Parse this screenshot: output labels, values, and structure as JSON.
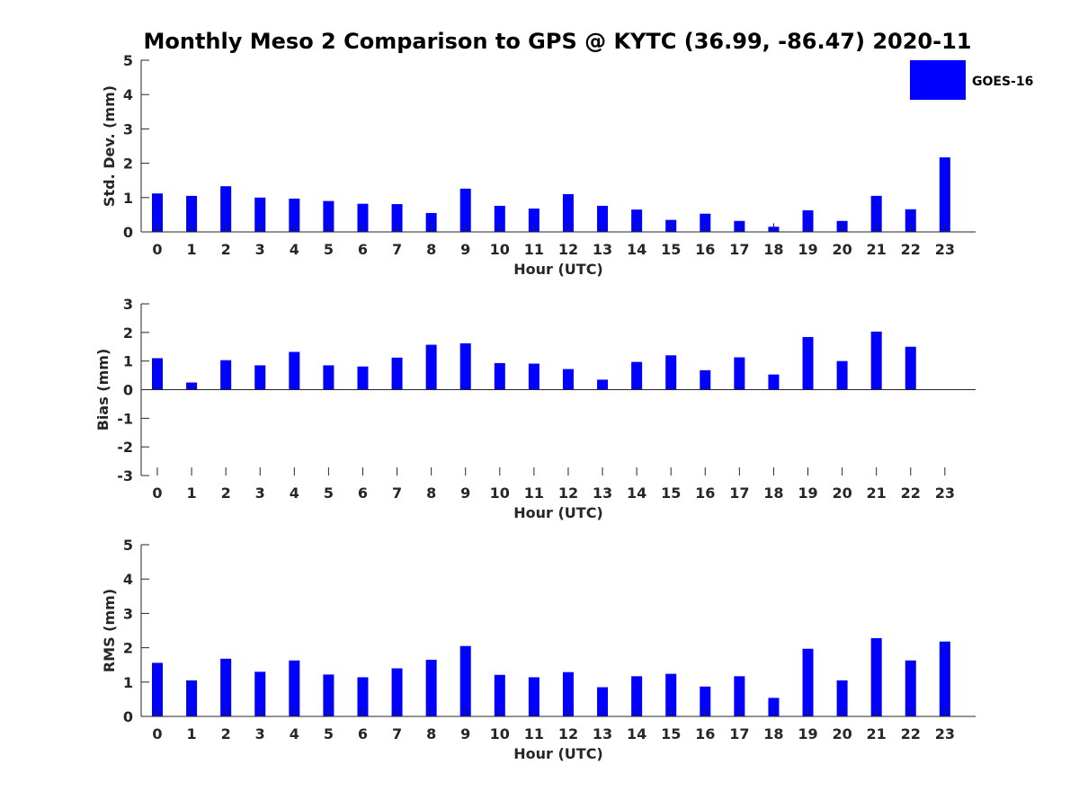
{
  "title": "Monthly Meso 2 Comparison to GPS @ KYTC (36.99, -86.47) 2020-11",
  "legend": {
    "label": "GOES-16",
    "color": "#0000ff",
    "placement": "top-right"
  },
  "chart_data": [
    {
      "type": "bar",
      "title": "Monthly Meso 2 Comparison to GPS @ KYTC (36.99, -86.47) 2020-11",
      "xlabel": "Hour (UTC)",
      "ylabel": "Std. Dev. (mm)",
      "ylim": [
        0,
        5
      ],
      "yticks": [
        0,
        1,
        2,
        3,
        4,
        5
      ],
      "categories": [
        "0",
        "1",
        "2",
        "3",
        "4",
        "5",
        "6",
        "7",
        "8",
        "9",
        "10",
        "11",
        "12",
        "13",
        "14",
        "15",
        "16",
        "17",
        "18",
        "19",
        "20",
        "21",
        "22",
        "23"
      ],
      "series": [
        {
          "name": "GOES-16",
          "color": "#0000ff",
          "values": [
            1.12,
            1.05,
            1.33,
            1.0,
            0.97,
            0.9,
            0.82,
            0.81,
            0.55,
            1.26,
            0.76,
            0.68,
            1.1,
            0.76,
            0.65,
            0.35,
            0.53,
            0.32,
            0.15,
            0.63,
            0.32,
            1.05,
            0.66,
            2.17
          ]
        }
      ],
      "error_bars": [
        {
          "category": "18",
          "low": 0.08,
          "high": 0.25
        }
      ],
      "grid": false
    },
    {
      "type": "bar",
      "xlabel": "Hour (UTC)",
      "ylabel": "Bias (mm)",
      "ylim": [
        -3,
        3
      ],
      "yticks": [
        -3,
        -2,
        -1,
        0,
        1,
        2,
        3
      ],
      "categories": [
        "0",
        "1",
        "2",
        "3",
        "4",
        "5",
        "6",
        "7",
        "8",
        "9",
        "10",
        "11",
        "12",
        "13",
        "14",
        "15",
        "16",
        "17",
        "18",
        "19",
        "20",
        "21",
        "22",
        "23"
      ],
      "series": [
        {
          "name": "GOES-16",
          "color": "#0000ff",
          "values": [
            1.1,
            0.25,
            1.03,
            0.85,
            1.32,
            0.85,
            0.81,
            1.12,
            1.57,
            1.62,
            0.93,
            0.91,
            0.72,
            0.35,
            0.97,
            1.2,
            0.68,
            1.13,
            0.53,
            1.84,
            1.0,
            2.03,
            1.5,
            0.0
          ]
        }
      ],
      "grid": false
    },
    {
      "type": "bar",
      "xlabel": "Hour (UTC)",
      "ylabel": "RMS (mm)",
      "ylim": [
        0,
        5
      ],
      "yticks": [
        0,
        1,
        2,
        3,
        4,
        5
      ],
      "categories": [
        "0",
        "1",
        "2",
        "3",
        "4",
        "5",
        "6",
        "7",
        "8",
        "9",
        "10",
        "11",
        "12",
        "13",
        "14",
        "15",
        "16",
        "17",
        "18",
        "19",
        "20",
        "21",
        "22",
        "23"
      ],
      "series": [
        {
          "name": "GOES-16",
          "color": "#0000ff",
          "values": [
            1.56,
            1.05,
            1.68,
            1.3,
            1.63,
            1.22,
            1.14,
            1.4,
            1.65,
            2.05,
            1.21,
            1.14,
            1.29,
            0.85,
            1.17,
            1.24,
            0.87,
            1.17,
            0.54,
            1.97,
            1.05,
            2.28,
            1.63,
            2.18
          ]
        }
      ],
      "grid": false
    }
  ]
}
